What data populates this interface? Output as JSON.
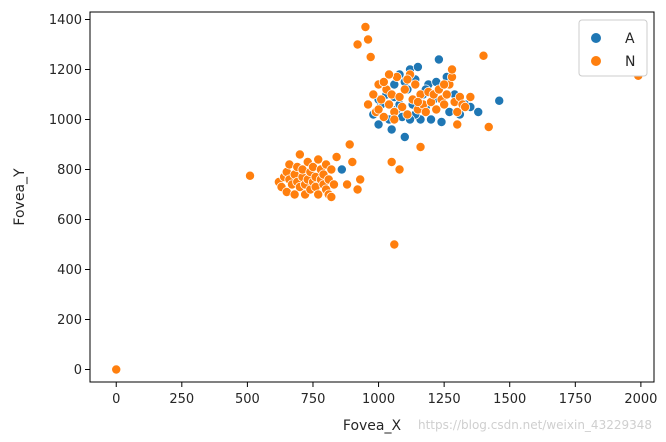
{
  "chart_data": {
    "type": "scatter",
    "xlabel": "Fovea_X",
    "ylabel": "Fovea_Y",
    "xlim": [
      -100,
      2050
    ],
    "ylim": [
      -50,
      1430
    ],
    "x_ticks": [
      "0",
      "250",
      "500",
      "750",
      "1000",
      "1250",
      "1500",
      "1750",
      "2000"
    ],
    "y_ticks": [
      "0",
      "200",
      "400",
      "600",
      "800",
      "1000",
      "1200",
      "1400"
    ],
    "legend_position": "top-right",
    "grid": false,
    "series": [
      {
        "name": "A",
        "color": "#1f77b4",
        "points": [
          [
            980,
            1020
          ],
          [
            1000,
            980
          ],
          [
            1010,
            1060
          ],
          [
            1030,
            1100
          ],
          [
            1040,
            1000
          ],
          [
            1050,
            960
          ],
          [
            1060,
            1140
          ],
          [
            1070,
            1040
          ],
          [
            1080,
            1180
          ],
          [
            1090,
            1010
          ],
          [
            1100,
            930
          ],
          [
            1110,
            1120
          ],
          [
            1120,
            1200
          ],
          [
            1130,
            1060
          ],
          [
            1140,
            1160
          ],
          [
            1150,
            1210
          ],
          [
            1160,
            1000
          ],
          [
            1170,
            1100
          ],
          [
            1180,
            1050
          ],
          [
            1190,
            1140
          ],
          [
            1200,
            1000
          ],
          [
            1210,
            1080
          ],
          [
            1220,
            1150
          ],
          [
            1230,
            1240
          ],
          [
            1240,
            990
          ],
          [
            1250,
            1060
          ],
          [
            1260,
            1170
          ],
          [
            1270,
            1030
          ],
          [
            1290,
            1100
          ],
          [
            1310,
            1020
          ],
          [
            1330,
            1060
          ],
          [
            1350,
            1050
          ],
          [
            1380,
            1030
          ],
          [
            1460,
            1075
          ],
          [
            860,
            800
          ],
          [
            1060,
            1090
          ],
          [
            1100,
            1150
          ],
          [
            1140,
            1020
          ],
          [
            1180,
            1120
          ],
          [
            1000,
            1080
          ],
          [
            1080,
            1060
          ],
          [
            1120,
            1000
          ]
        ]
      },
      {
        "name": "N",
        "color": "#ff7f0e",
        "points": [
          [
            0,
            0
          ],
          [
            510,
            775
          ],
          [
            620,
            750
          ],
          [
            630,
            730
          ],
          [
            640,
            770
          ],
          [
            650,
            790
          ],
          [
            650,
            710
          ],
          [
            660,
            760
          ],
          [
            660,
            820
          ],
          [
            670,
            740
          ],
          [
            680,
            780
          ],
          [
            680,
            700
          ],
          [
            690,
            810
          ],
          [
            690,
            750
          ],
          [
            700,
            860
          ],
          [
            700,
            730
          ],
          [
            710,
            770
          ],
          [
            710,
            800
          ],
          [
            720,
            740
          ],
          [
            720,
            700
          ],
          [
            730,
            830
          ],
          [
            730,
            760
          ],
          [
            740,
            790
          ],
          [
            740,
            720
          ],
          [
            750,
            750
          ],
          [
            750,
            810
          ],
          [
            760,
            770
          ],
          [
            760,
            730
          ],
          [
            770,
            840
          ],
          [
            770,
            700
          ],
          [
            780,
            760
          ],
          [
            780,
            800
          ],
          [
            790,
            740
          ],
          [
            790,
            780
          ],
          [
            800,
            820
          ],
          [
            800,
            720
          ],
          [
            810,
            760
          ],
          [
            810,
            700
          ],
          [
            820,
            800
          ],
          [
            830,
            740
          ],
          [
            840,
            850
          ],
          [
            820,
            690
          ],
          [
            880,
            740
          ],
          [
            890,
            900
          ],
          [
            900,
            830
          ],
          [
            920,
            720
          ],
          [
            930,
            760
          ],
          [
            920,
            1300
          ],
          [
            950,
            1370
          ],
          [
            960,
            1320
          ],
          [
            970,
            1250
          ],
          [
            960,
            1060
          ],
          [
            980,
            1100
          ],
          [
            990,
            1030
          ],
          [
            1000,
            1140
          ],
          [
            1010,
            1080
          ],
          [
            1020,
            1010
          ],
          [
            1030,
            1120
          ],
          [
            1040,
            1060
          ],
          [
            1050,
            1100
          ],
          [
            1060,
            1030
          ],
          [
            1070,
            1170
          ],
          [
            1080,
            1090
          ],
          [
            1090,
            1050
          ],
          [
            1100,
            1120
          ],
          [
            1110,
            1020
          ],
          [
            1120,
            1180
          ],
          [
            1130,
            1080
          ],
          [
            1140,
            1140
          ],
          [
            1150,
            1040
          ],
          [
            1160,
            1100
          ],
          [
            1170,
            1060
          ],
          [
            1180,
            1030
          ],
          [
            1190,
            1110
          ],
          [
            1200,
            1070
          ],
          [
            1210,
            1100
          ],
          [
            1220,
            1040
          ],
          [
            1230,
            1120
          ],
          [
            1240,
            1080
          ],
          [
            1250,
            1060
          ],
          [
            1260,
            1100
          ],
          [
            1270,
            1140
          ],
          [
            1280,
            1170
          ],
          [
            1290,
            1070
          ],
          [
            1300,
            1030
          ],
          [
            1310,
            1090
          ],
          [
            1320,
            1060
          ],
          [
            1330,
            1050
          ],
          [
            1350,
            1090
          ],
          [
            1280,
            1200
          ],
          [
            1250,
            1140
          ],
          [
            1040,
            1180
          ],
          [
            1060,
            1000
          ],
          [
            1000,
            1040
          ],
          [
            1020,
            1150
          ],
          [
            1110,
            1160
          ],
          [
            1150,
            1070
          ],
          [
            1050,
            830
          ],
          [
            1080,
            800
          ],
          [
            1160,
            890
          ],
          [
            1060,
            500
          ],
          [
            1400,
            1255
          ],
          [
            1420,
            970
          ],
          [
            1300,
            980
          ],
          [
            1990,
            1175
          ]
        ]
      }
    ]
  },
  "watermark": "https://blog.csdn.net/weixin_43229348"
}
